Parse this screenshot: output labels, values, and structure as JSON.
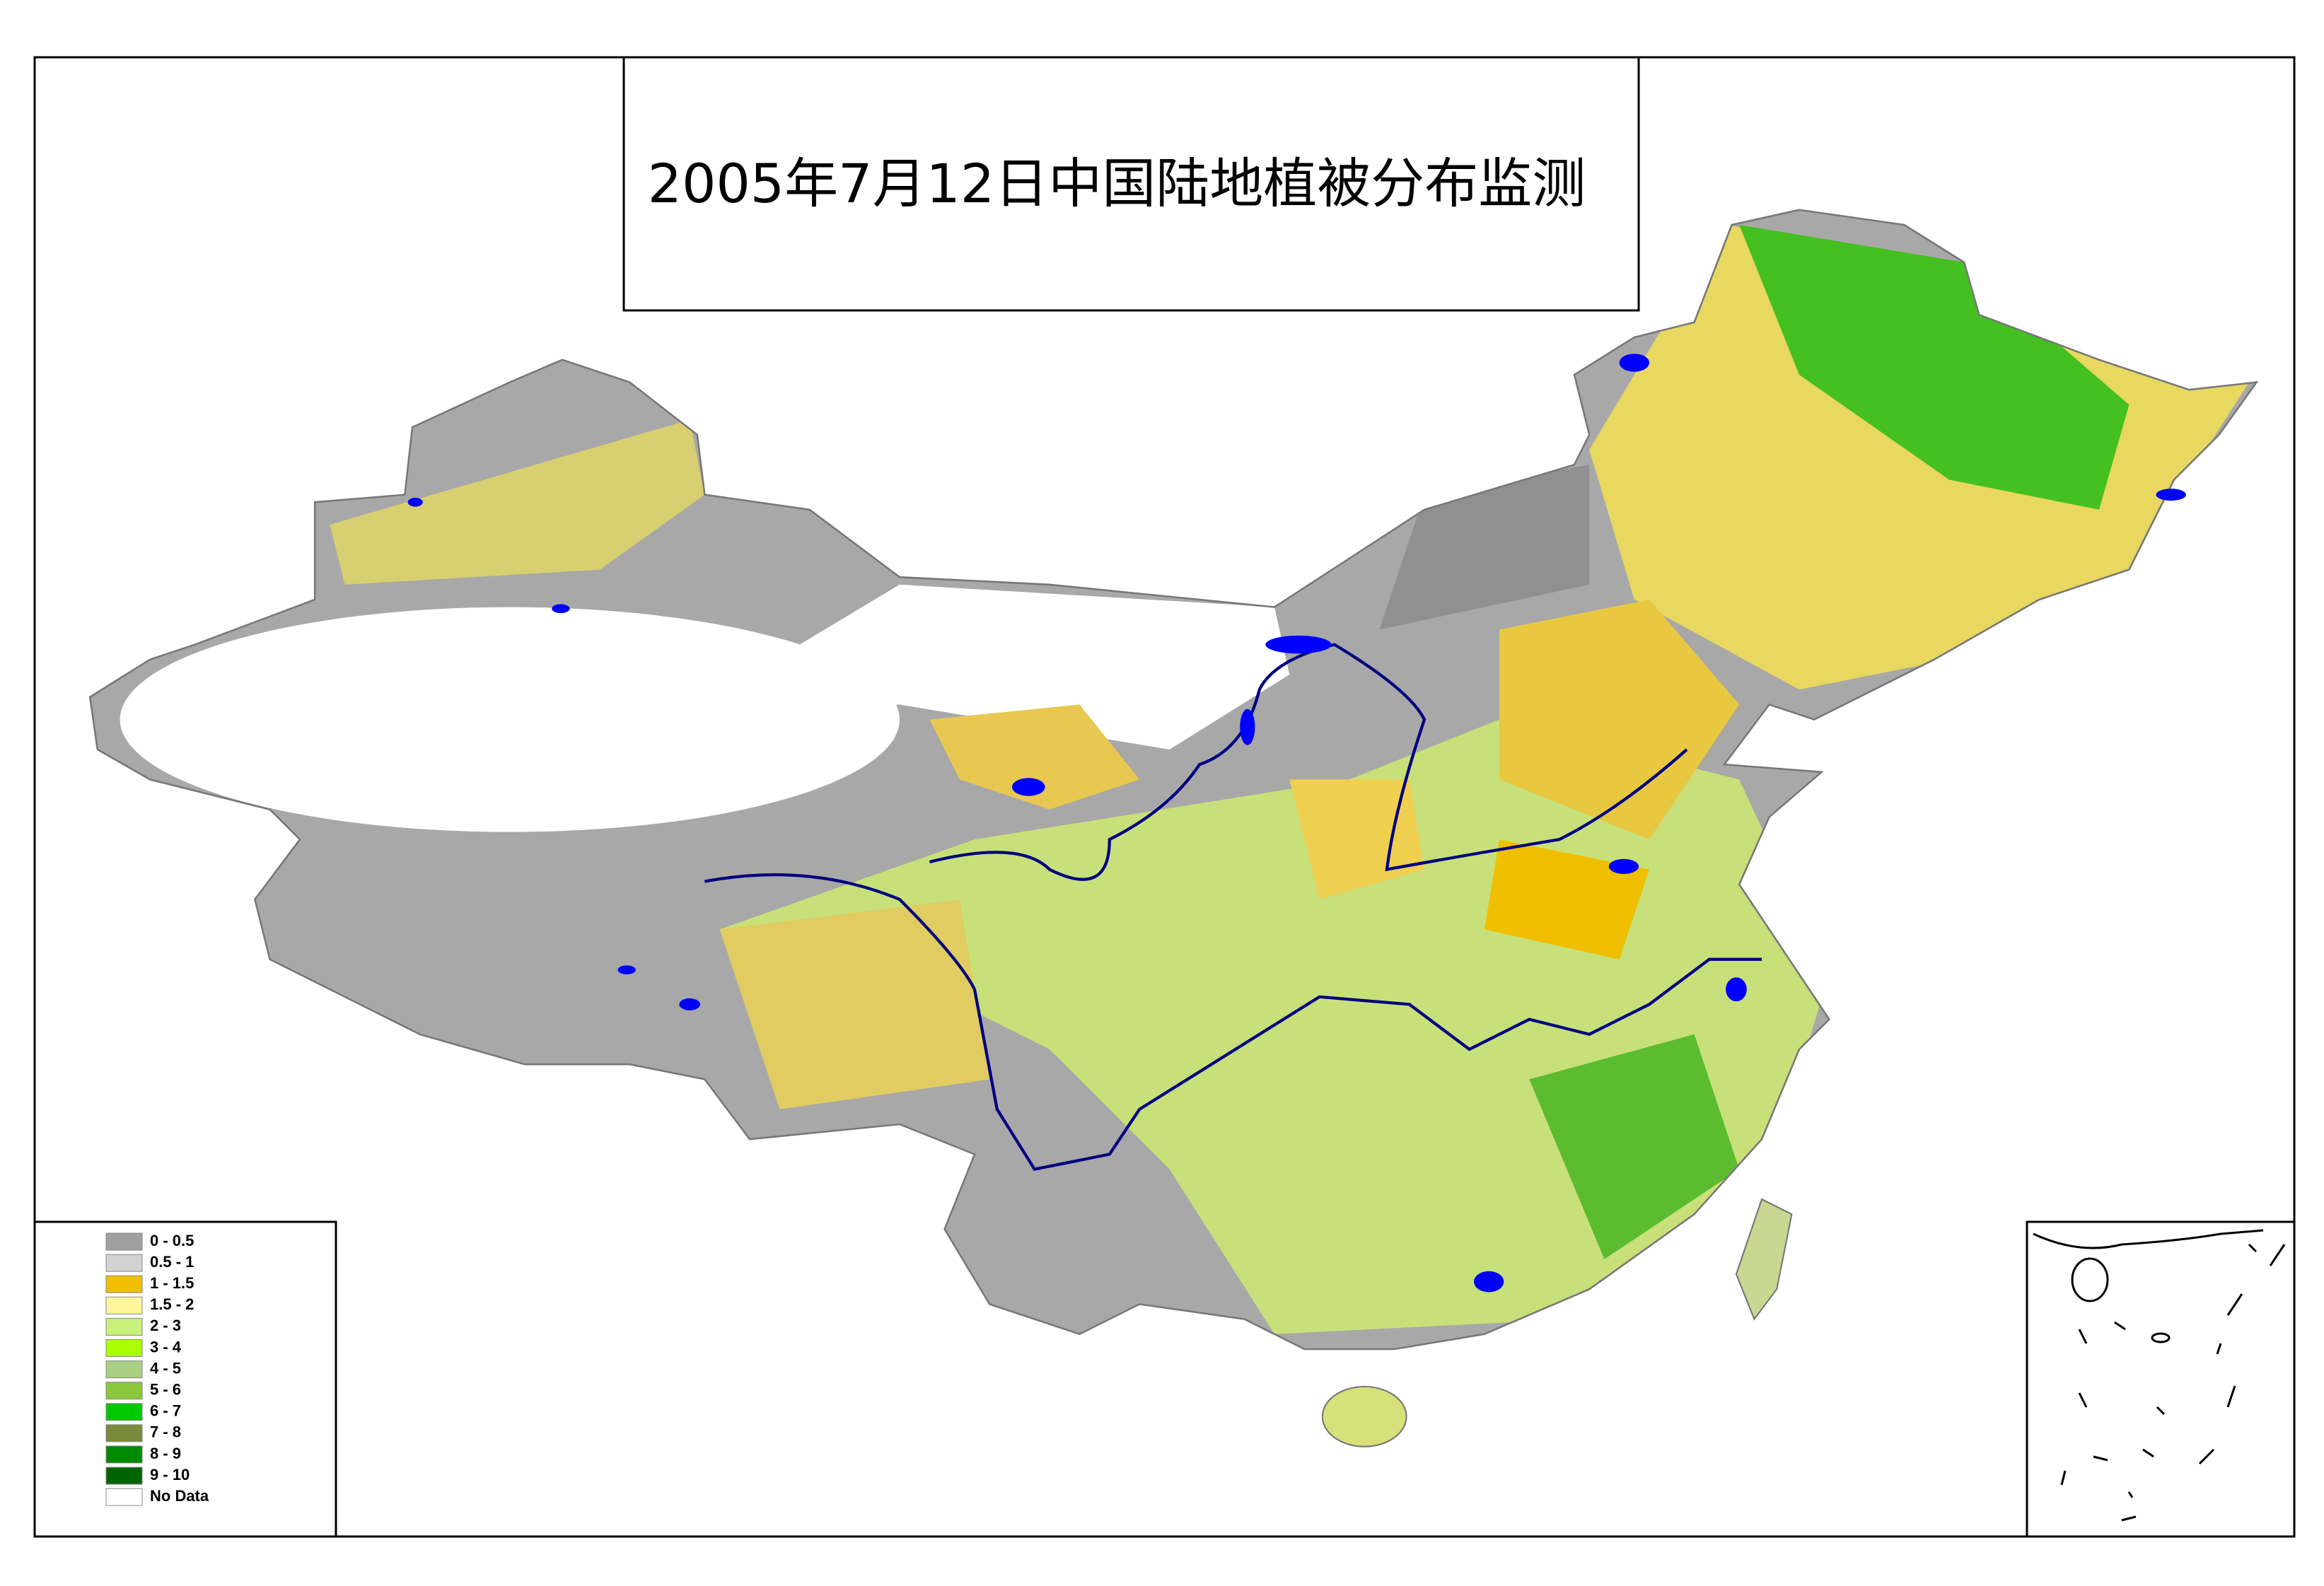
{
  "title": "2005年7月12日中国陆地植被分布监测",
  "legend": {
    "items": [
      {
        "label": "0 - 0.5",
        "color": "#a0a0a0"
      },
      {
        "label": "0.5 - 1",
        "color": "#d2d2d2"
      },
      {
        "label": "1 - 1.5",
        "color": "#f0c000"
      },
      {
        "label": "1.5 - 2",
        "color": "#fff59a"
      },
      {
        "label": "2 - 3",
        "color": "#c8f07a"
      },
      {
        "label": "3 - 4",
        "color": "#aaff00"
      },
      {
        "label": "4 - 5",
        "color": "#a8d080"
      },
      {
        "label": "5 - 6",
        "color": "#8cc83c"
      },
      {
        "label": "6 - 7",
        "color": "#00c800"
      },
      {
        "label": "7 - 8",
        "color": "#7a8a3a"
      },
      {
        "label": "8 - 9",
        "color": "#008a00"
      },
      {
        "label": "9 - 10",
        "color": "#006400"
      },
      {
        "label": "No Data",
        "color": "#ffffff"
      }
    ]
  }
}
